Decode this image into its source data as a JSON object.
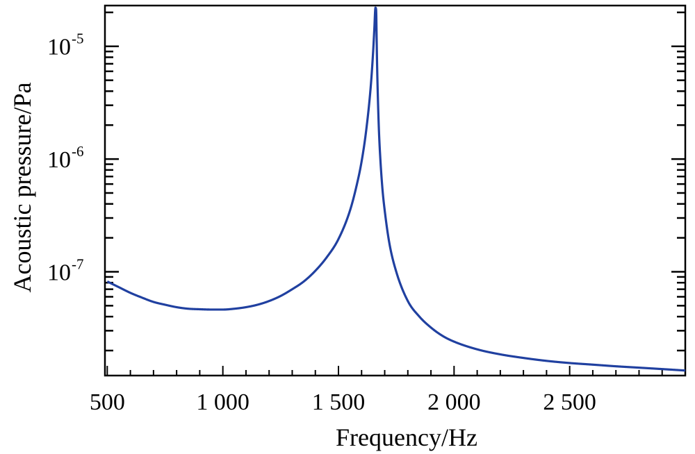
{
  "chart_data": {
    "type": "line",
    "title": "",
    "xlabel": "Frequency/Hz",
    "ylabel": "Acoustic pressure/Pa",
    "xscale": "linear",
    "yscale": "log",
    "xlim": [
      490,
      3000
    ],
    "ylim": [
      1.2e-08,
      2.3e-05
    ],
    "grid": false,
    "line_color": "#2040a0",
    "x_ticks": [
      {
        "value": 500,
        "label": "500"
      },
      {
        "value": 1000,
        "label": "1 000"
      },
      {
        "value": 1500,
        "label": "1 500"
      },
      {
        "value": 2000,
        "label": "2 000"
      },
      {
        "value": 2500,
        "label": "2 500"
      }
    ],
    "y_ticks": [
      {
        "value": 1e-07,
        "base": "10",
        "exponent": "-7"
      },
      {
        "value": 1e-06,
        "base": "10",
        "exponent": "-6"
      },
      {
        "value": 1e-05,
        "base": "10",
        "exponent": "-5"
      }
    ],
    "series": [
      {
        "x": [
          500,
          550,
          600,
          650,
          700,
          750,
          800,
          850,
          900,
          950,
          1000,
          1050,
          1100,
          1150,
          1200,
          1250,
          1300,
          1350,
          1400,
          1450,
          1500,
          1550,
          1580,
          1600,
          1620,
          1640,
          1650,
          1655,
          1660,
          1663,
          1665,
          1667,
          1670,
          1675,
          1680,
          1690,
          1700,
          1720,
          1750,
          1800,
          1850,
          1900,
          1950,
          2000,
          2100,
          2200,
          2300,
          2400,
          2500,
          2600,
          2700,
          2800,
          2900,
          3000
        ],
        "y": [
          8.2e-08,
          7.3e-08,
          6.5e-08,
          5.9e-08,
          5.4e-08,
          5.1e-08,
          4.85e-08,
          4.7e-08,
          4.65e-08,
          4.62e-08,
          4.62e-08,
          4.7e-08,
          4.85e-08,
          5.1e-08,
          5.5e-08,
          6.1e-08,
          7e-08,
          8.2e-08,
          1.02e-07,
          1.35e-07,
          1.95e-07,
          3.5e-07,
          6e-07,
          9.5e-07,
          1.8e-06,
          4.5e-06,
          9e-06,
          1.4e-05,
          2.2e-05,
          2.1e-05,
          1.2e-05,
          7e-06,
          3.8e-06,
          1.8e-06,
          1.1e-06,
          5.5e-07,
          3.5e-07,
          1.8e-07,
          1e-07,
          5.5e-08,
          4e-08,
          3.2e-08,
          2.7e-08,
          2.4e-08,
          2.05e-08,
          1.85e-08,
          1.72e-08,
          1.62e-08,
          1.55e-08,
          1.5e-08,
          1.45e-08,
          1.41e-08,
          1.37e-08,
          1.33e-08
        ]
      }
    ]
  }
}
